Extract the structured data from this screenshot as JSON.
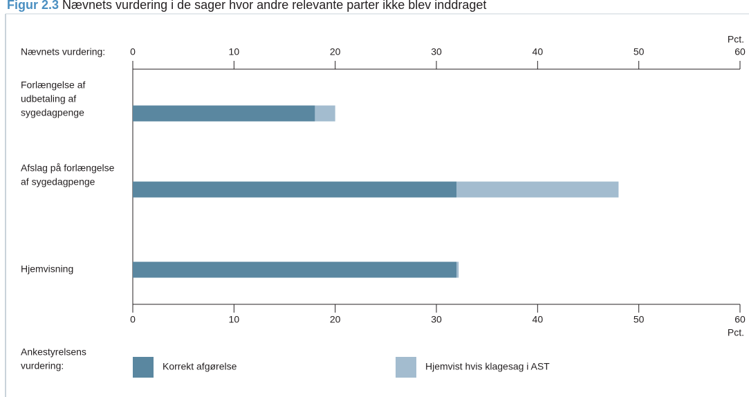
{
  "chart_data": {
    "type": "stacked_barh",
    "title_prefix": "Figur 2.3",
    "title": "Nævnets vurdering i de sager hvor andre relevante parter ikke blev inddraget",
    "top_axis_label": "Nævnets vurdering:",
    "bottom_axis_label": [
      "Ankestyrelsens",
      "vurdering:"
    ],
    "unit": "Pct.",
    "categories": [
      [
        "Forlængelse af",
        "udbetaling af",
        "sygedagpenge"
      ],
      [
        "Afslag på forlængelse",
        "af sygedagpenge"
      ],
      [
        "Hjemvisning"
      ]
    ],
    "series": [
      {
        "name": "Korrekt afgørelse",
        "color": "#5a87a0",
        "values": [
          18,
          32,
          32
        ]
      },
      {
        "name": "Hjemvist hvis klagesag i AST",
        "color": "#a3bccf",
        "values": [
          2,
          16,
          0.2
        ]
      }
    ],
    "xlim": [
      0,
      60
    ],
    "xticks": [
      0,
      10,
      20,
      30,
      40,
      50,
      60
    ]
  }
}
